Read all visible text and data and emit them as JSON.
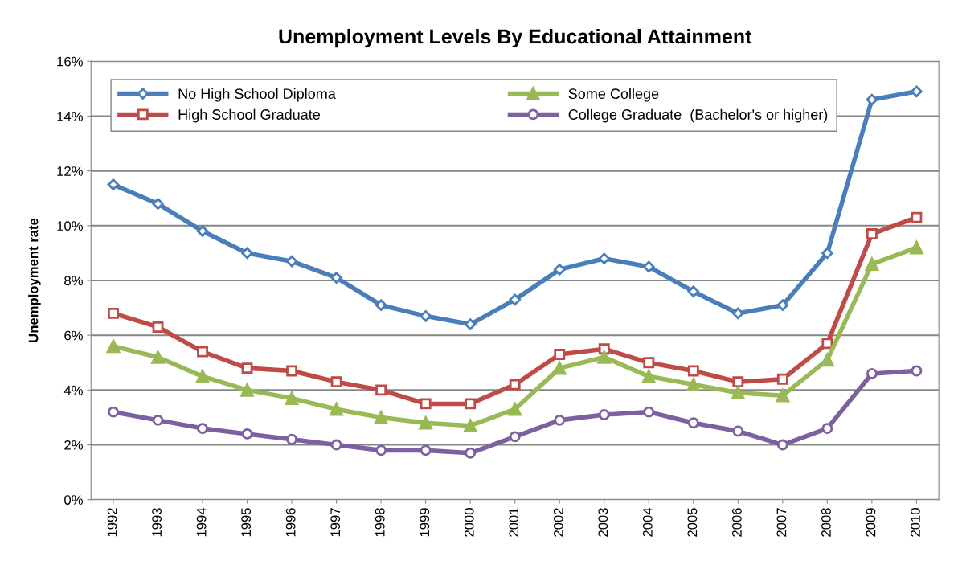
{
  "chart_data": {
    "type": "line",
    "title": "Unemployment Levels By Educational Attainment",
    "ylabel": "Unemployment rate",
    "categories": [
      "1992",
      "1993",
      "1994",
      "1995",
      "1996",
      "1997",
      "1998",
      "1999",
      "2000",
      "2001",
      "2002",
      "2003",
      "2004",
      "2005",
      "2006",
      "2007",
      "2008",
      "2009",
      "2010"
    ],
    "series": [
      {
        "name": "No High School Diploma",
        "color": "#4a7ebb",
        "marker": "diamond",
        "values": [
          11.5,
          10.8,
          9.8,
          9.0,
          8.7,
          8.1,
          7.1,
          6.7,
          6.4,
          7.3,
          8.4,
          8.8,
          8.5,
          7.6,
          6.8,
          7.1,
          9.0,
          14.6,
          14.9
        ]
      },
      {
        "name": "High School Graduate",
        "color": "#be4b48",
        "marker": "square",
        "values": [
          6.8,
          6.3,
          5.4,
          4.8,
          4.7,
          4.3,
          4.0,
          3.5,
          3.5,
          4.2,
          5.3,
          5.5,
          5.0,
          4.7,
          4.3,
          4.4,
          5.7,
          9.7,
          10.3
        ]
      },
      {
        "name": "Some College",
        "color": "#98b954",
        "marker": "triangle",
        "values": [
          5.6,
          5.2,
          4.5,
          4.0,
          3.7,
          3.3,
          3.0,
          2.8,
          2.7,
          3.3,
          4.8,
          5.2,
          4.5,
          4.2,
          3.9,
          3.8,
          5.1,
          8.6,
          9.2
        ]
      },
      {
        "name": "College Graduate  (Bachelor's or higher)",
        "color": "#7d60a0",
        "marker": "circle",
        "values": [
          3.2,
          2.9,
          2.6,
          2.4,
          2.2,
          2.0,
          1.8,
          1.8,
          1.7,
          2.3,
          2.9,
          3.1,
          3.2,
          2.8,
          2.5,
          2.0,
          2.6,
          4.6,
          4.7
        ]
      }
    ],
    "ylim": [
      0,
      16
    ],
    "yticks": [
      {
        "value": 0,
        "label": "0%"
      },
      {
        "value": 2,
        "label": "2%"
      },
      {
        "value": 4,
        "label": "4%"
      },
      {
        "value": 6,
        "label": "6%"
      },
      {
        "value": 8,
        "label": "8%"
      },
      {
        "value": 10,
        "label": "10%"
      },
      {
        "value": 12,
        "label": "12%"
      },
      {
        "value": 14,
        "label": "14%"
      },
      {
        "value": 16,
        "label": "16%"
      }
    ],
    "grid": "y",
    "legend": "top left",
    "line_style": "solid"
  }
}
